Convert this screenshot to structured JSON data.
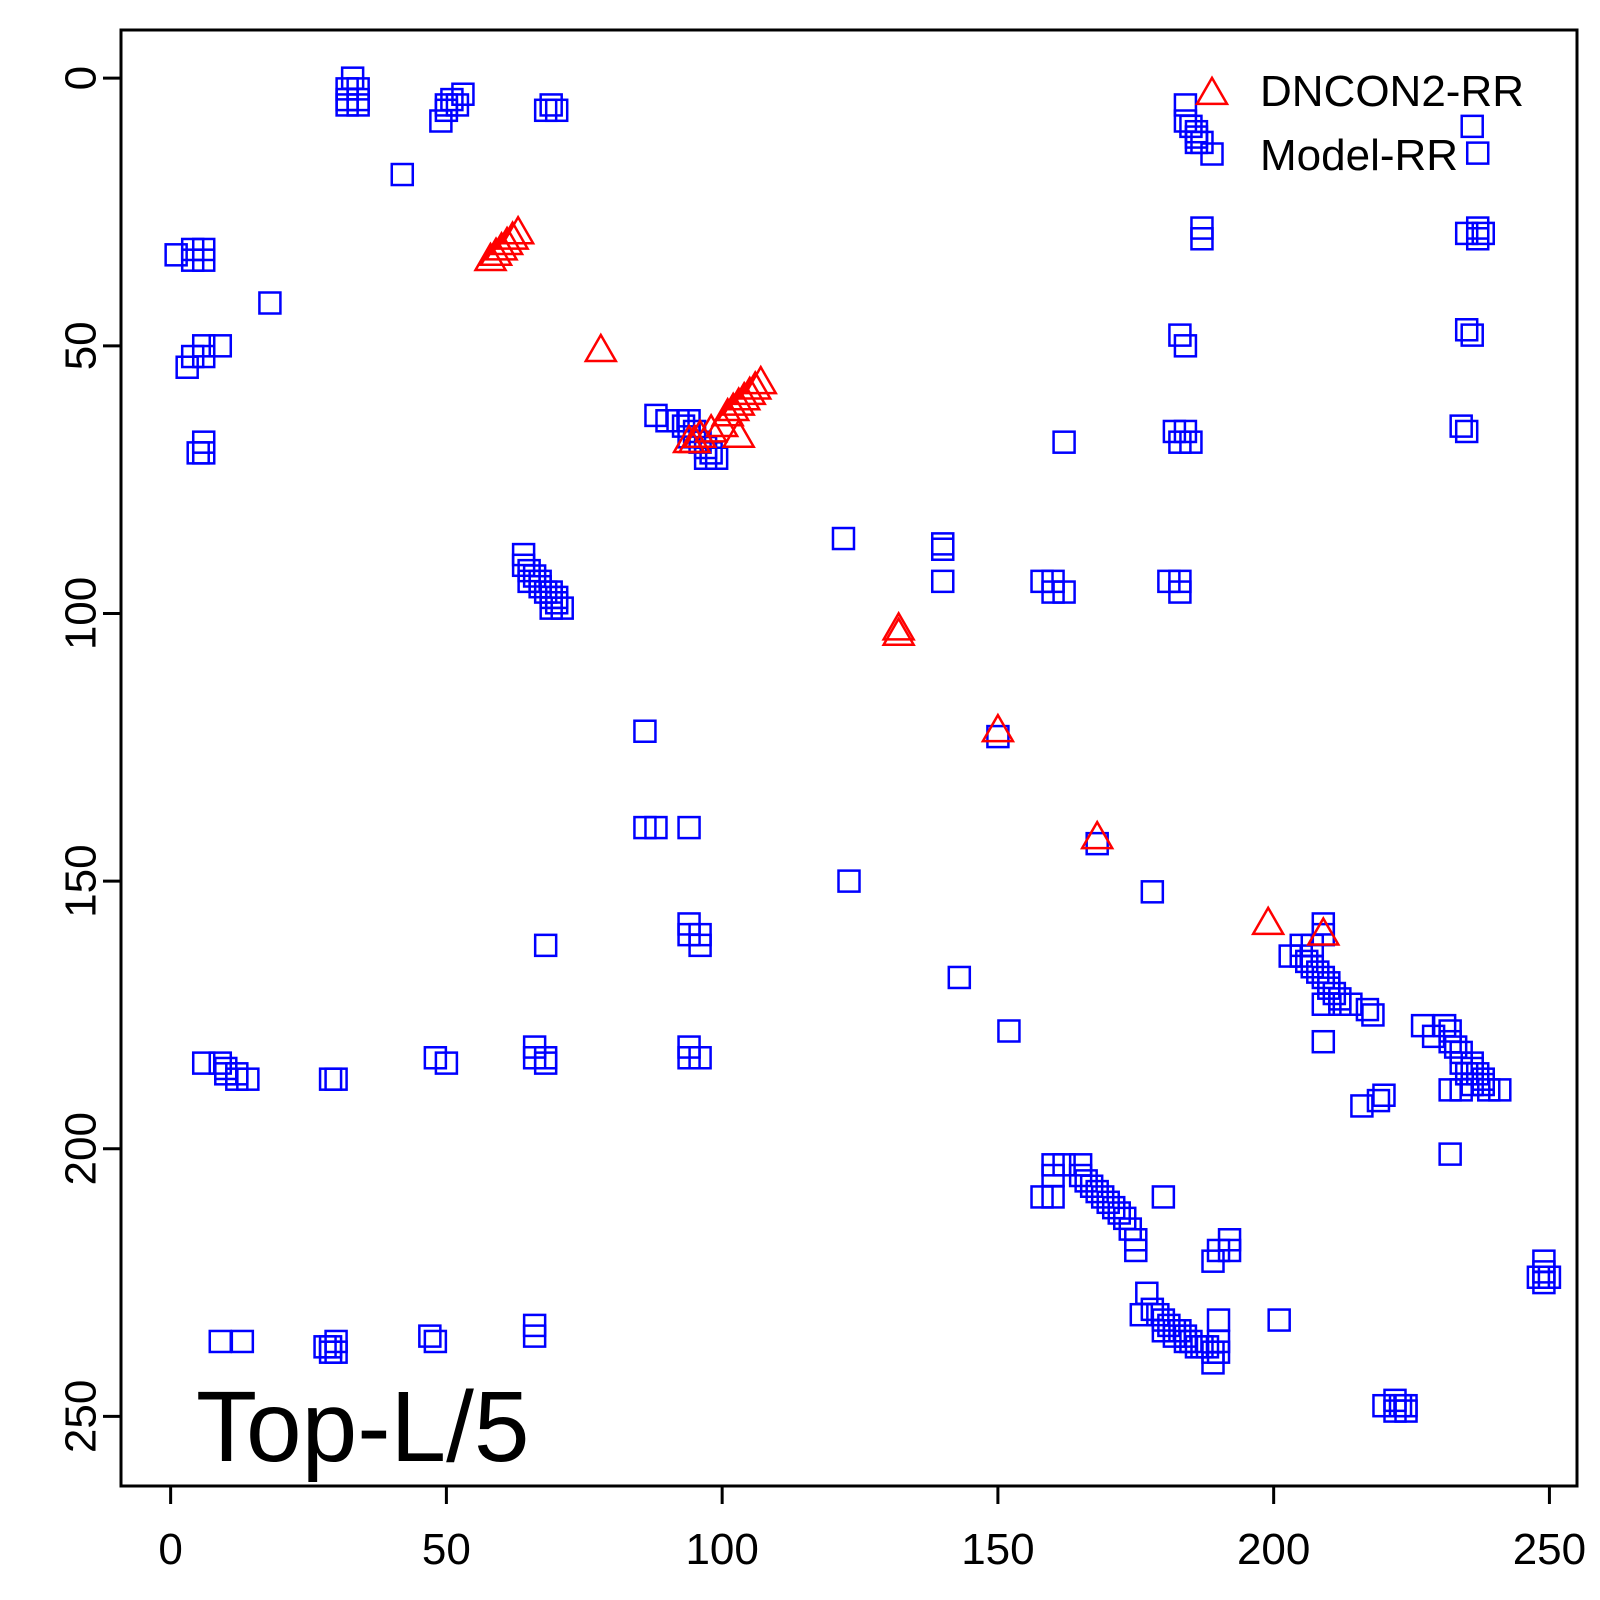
{
  "chart_data": {
    "type": "scatter",
    "title": "",
    "xlabel": "",
    "ylabel": "",
    "xlim": [
      -9,
      255
    ],
    "ylim": [
      263,
      -9
    ],
    "y_inverted": true,
    "x_ticks": [
      0,
      50,
      100,
      150,
      200,
      250
    ],
    "y_ticks": [
      0,
      50,
      100,
      150,
      200,
      250
    ],
    "grid": false,
    "legend_position": "top-right",
    "annotation": "Top-L/5",
    "series": [
      {
        "name": "DNCON2-RR",
        "marker": "triangle",
        "color": "#ff0000",
        "points": [
          [
            58,
            34
          ],
          [
            59,
            33
          ],
          [
            60,
            32
          ],
          [
            61,
            31
          ],
          [
            62,
            30
          ],
          [
            63,
            29
          ],
          [
            78,
            51
          ],
          [
            94,
            68
          ],
          [
            95,
            68
          ],
          [
            96,
            67
          ],
          [
            98,
            66
          ],
          [
            100,
            65
          ],
          [
            101,
            63
          ],
          [
            102,
            62
          ],
          [
            103,
            61
          ],
          [
            104,
            60
          ],
          [
            105,
            59
          ],
          [
            106,
            58
          ],
          [
            107,
            57
          ],
          [
            103,
            67
          ],
          [
            132,
            103
          ],
          [
            132,
            104
          ],
          [
            150,
            122
          ],
          [
            168,
            142
          ],
          [
            199,
            158
          ],
          [
            209,
            160
          ]
        ]
      },
      {
        "name": "Model-RR",
        "marker": "square",
        "color": "#0000ff",
        "points": [
          [
            33,
            0
          ],
          [
            32,
            2
          ],
          [
            34,
            2
          ],
          [
            32,
            4
          ],
          [
            34,
            4
          ],
          [
            32,
            5
          ],
          [
            34,
            5
          ],
          [
            53,
            3
          ],
          [
            51,
            4
          ],
          [
            50,
            5
          ],
          [
            52,
            5
          ],
          [
            50,
            6
          ],
          [
            49,
            8
          ],
          [
            69,
            5
          ],
          [
            68,
            6
          ],
          [
            70,
            6
          ],
          [
            42,
            18
          ],
          [
            1,
            33
          ],
          [
            4,
            32
          ],
          [
            6,
            32
          ],
          [
            4,
            34
          ],
          [
            6,
            34
          ],
          [
            18,
            42
          ],
          [
            6,
            50
          ],
          [
            9,
            50
          ],
          [
            4,
            52
          ],
          [
            6,
            52
          ],
          [
            3,
            54
          ],
          [
            6,
            68
          ],
          [
            5,
            70
          ],
          [
            6,
            70
          ],
          [
            184,
            5
          ],
          [
            184,
            8
          ],
          [
            185,
            9
          ],
          [
            186,
            10
          ],
          [
            186,
            11
          ],
          [
            186,
            12
          ],
          [
            187,
            12
          ],
          [
            187,
            28
          ],
          [
            187,
            30
          ],
          [
            236,
            9
          ],
          [
            237,
            14
          ],
          [
            235,
            29
          ],
          [
            237,
            28
          ],
          [
            238,
            29
          ],
          [
            237,
            30
          ],
          [
            235,
            47
          ],
          [
            236,
            48
          ],
          [
            183,
            48
          ],
          [
            184,
            50
          ],
          [
            234,
            65
          ],
          [
            235,
            66
          ],
          [
            182,
            66
          ],
          [
            184,
            66
          ],
          [
            183,
            68
          ],
          [
            185,
            68
          ],
          [
            162,
            68
          ],
          [
            88,
            63
          ],
          [
            90,
            64
          ],
          [
            92,
            64
          ],
          [
            93,
            65
          ],
          [
            94,
            64
          ],
          [
            95,
            66
          ],
          [
            94,
            67
          ],
          [
            96,
            68
          ],
          [
            97,
            69
          ],
          [
            98,
            70
          ],
          [
            99,
            71
          ],
          [
            97,
            71
          ],
          [
            64,
            89
          ],
          [
            64,
            91
          ],
          [
            65,
            92
          ],
          [
            65,
            94
          ],
          [
            66,
            93
          ],
          [
            67,
            94
          ],
          [
            67,
            95
          ],
          [
            68,
            96
          ],
          [
            69,
            96
          ],
          [
            69,
            97
          ],
          [
            70,
            97
          ],
          [
            70,
            98
          ],
          [
            69,
            99
          ],
          [
            71,
            99
          ],
          [
            122,
            86
          ],
          [
            140,
            87
          ],
          [
            140,
            88
          ],
          [
            140,
            94
          ],
          [
            158,
            94
          ],
          [
            160,
            94
          ],
          [
            160,
            96
          ],
          [
            162,
            96
          ],
          [
            181,
            94
          ],
          [
            183,
            94
          ],
          [
            183,
            96
          ],
          [
            86,
            122
          ],
          [
            86,
            140
          ],
          [
            88,
            140
          ],
          [
            94,
            140
          ],
          [
            123,
            150
          ],
          [
            178,
            152
          ],
          [
            168,
            143
          ],
          [
            150,
            123
          ],
          [
            94,
            158
          ],
          [
            94,
            160
          ],
          [
            96,
            160
          ],
          [
            96,
            162
          ],
          [
            68,
            162
          ],
          [
            143,
            168
          ],
          [
            152,
            178
          ],
          [
            209,
            158
          ],
          [
            209,
            160
          ],
          [
            205,
            162
          ],
          [
            207,
            162
          ],
          [
            203,
            164
          ],
          [
            205,
            164
          ],
          [
            206,
            165
          ],
          [
            207,
            166
          ],
          [
            208,
            167
          ],
          [
            209,
            168
          ],
          [
            210,
            169
          ],
          [
            210,
            170
          ],
          [
            211,
            171
          ],
          [
            212,
            172
          ],
          [
            209,
            173
          ],
          [
            212,
            173
          ],
          [
            214,
            173
          ],
          [
            217,
            174
          ],
          [
            218,
            175
          ],
          [
            209,
            180
          ],
          [
            227,
            177
          ],
          [
            229,
            179
          ],
          [
            231,
            177
          ],
          [
            232,
            178
          ],
          [
            232,
            180
          ],
          [
            233,
            181
          ],
          [
            234,
            182
          ],
          [
            234,
            184
          ],
          [
            236,
            184
          ],
          [
            236,
            185
          ],
          [
            235,
            186
          ],
          [
            237,
            186
          ],
          [
            238,
            187
          ],
          [
            236,
            188
          ],
          [
            238,
            188
          ],
          [
            239,
            189
          ],
          [
            241,
            189
          ],
          [
            232,
            189
          ],
          [
            234,
            189
          ],
          [
            216,
            192
          ],
          [
            219,
            191
          ],
          [
            220,
            190
          ],
          [
            232,
            201
          ],
          [
            6,
            184
          ],
          [
            9,
            184
          ],
          [
            10,
            185
          ],
          [
            10,
            186
          ],
          [
            12,
            186
          ],
          [
            12,
            187
          ],
          [
            14,
            187
          ],
          [
            29,
            187
          ],
          [
            30,
            187
          ],
          [
            48,
            183
          ],
          [
            50,
            184
          ],
          [
            66,
            181
          ],
          [
            66,
            183
          ],
          [
            68,
            184
          ],
          [
            68,
            183
          ],
          [
            94,
            181
          ],
          [
            94,
            183
          ],
          [
            96,
            183
          ],
          [
            160,
            203
          ],
          [
            162,
            203
          ],
          [
            160,
            205
          ],
          [
            165,
            203
          ],
          [
            165,
            205
          ],
          [
            166,
            206
          ],
          [
            167,
            207
          ],
          [
            168,
            208
          ],
          [
            169,
            209
          ],
          [
            170,
            210
          ],
          [
            171,
            211
          ],
          [
            172,
            212
          ],
          [
            173,
            213
          ],
          [
            174,
            215
          ],
          [
            158,
            209
          ],
          [
            160,
            209
          ],
          [
            180,
            209
          ],
          [
            175,
            217
          ],
          [
            175,
            219
          ],
          [
            189,
            221
          ],
          [
            190,
            219
          ],
          [
            192,
            217
          ],
          [
            192,
            219
          ],
          [
            177,
            227
          ],
          [
            176,
            231
          ],
          [
            178,
            230
          ],
          [
            179,
            231
          ],
          [
            180,
            232
          ],
          [
            180,
            234
          ],
          [
            181,
            233
          ],
          [
            182,
            234
          ],
          [
            182,
            235
          ],
          [
            183,
            234
          ],
          [
            184,
            235
          ],
          [
            184,
            236
          ],
          [
            185,
            236
          ],
          [
            186,
            237
          ],
          [
            187,
            237
          ],
          [
            188,
            237
          ],
          [
            189,
            238
          ],
          [
            190,
            236
          ],
          [
            190,
            238
          ],
          [
            189,
            240
          ],
          [
            190,
            232
          ],
          [
            201,
            232
          ],
          [
            249,
            221
          ],
          [
            249,
            223
          ],
          [
            248,
            224
          ],
          [
            250,
            224
          ],
          [
            249,
            225
          ],
          [
            9,
            236
          ],
          [
            13,
            236
          ],
          [
            28,
            237
          ],
          [
            29,
            237
          ],
          [
            30,
            236
          ],
          [
            30,
            238
          ],
          [
            29,
            238
          ],
          [
            47,
            235
          ],
          [
            48,
            236
          ],
          [
            66,
            233
          ],
          [
            66,
            235
          ],
          [
            220,
            248
          ],
          [
            222,
            247
          ],
          [
            222,
            249
          ],
          [
            223,
            248
          ],
          [
            224,
            248
          ],
          [
            224,
            249
          ]
        ]
      }
    ]
  }
}
